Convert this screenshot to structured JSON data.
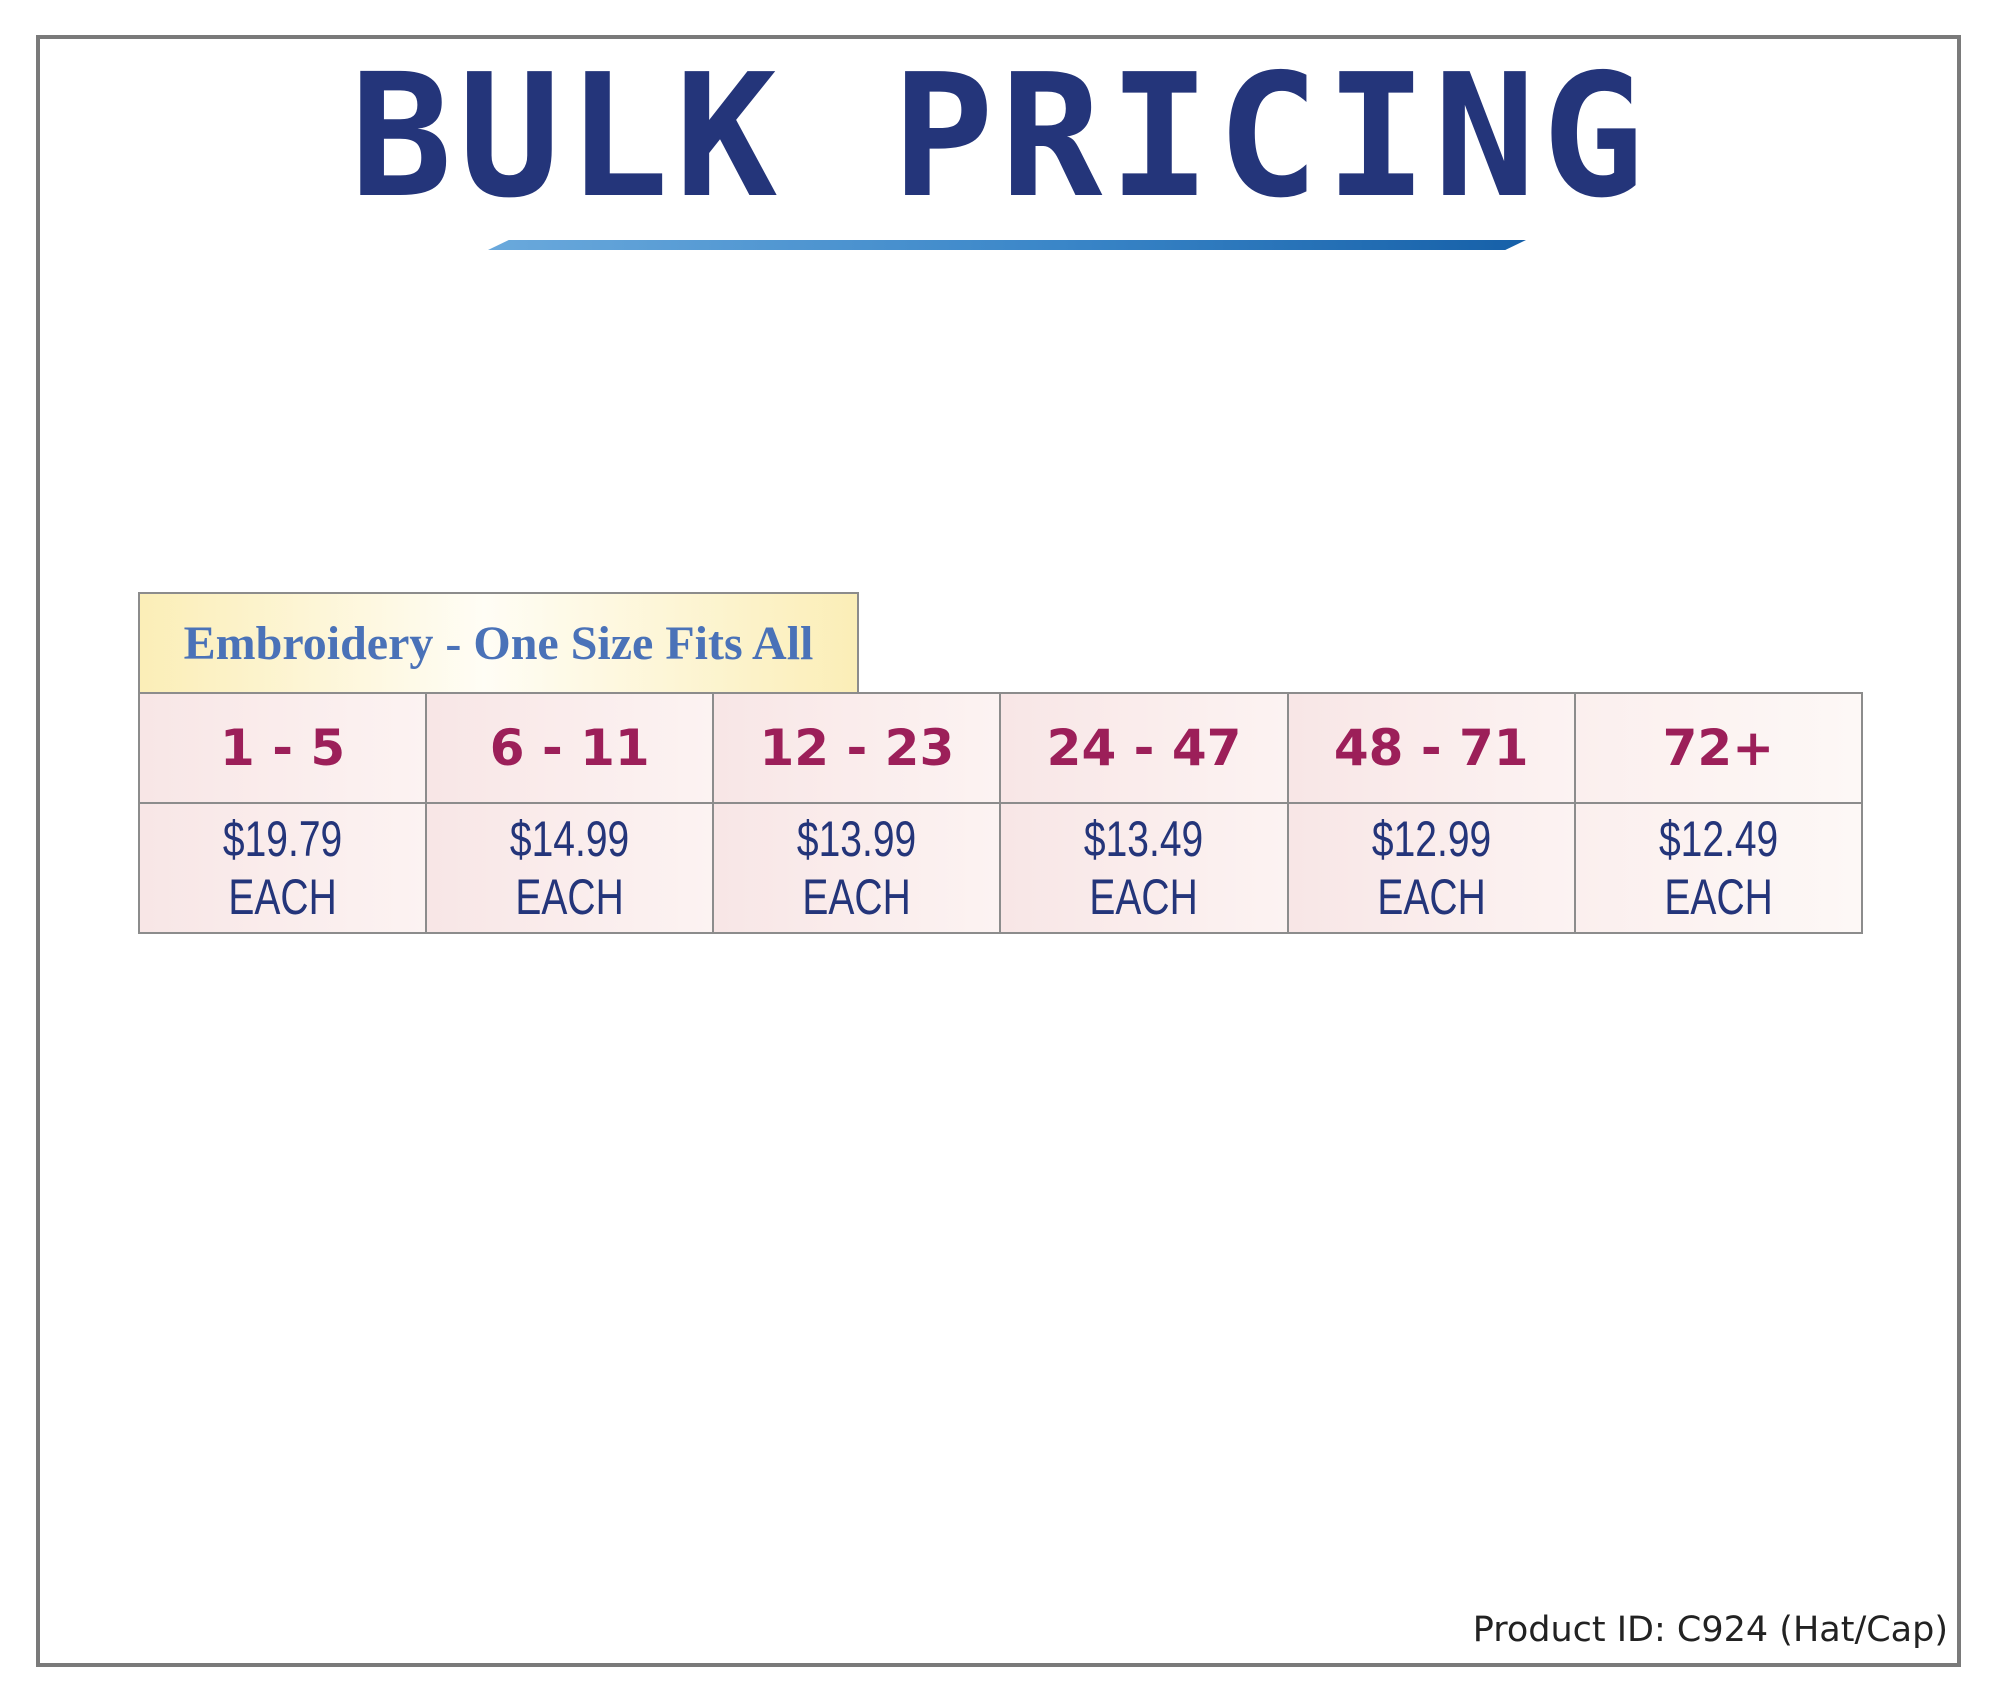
{
  "title": "BULK PRICING",
  "section_label": "Embroidery - One Size Fits All",
  "tiers": [
    {
      "quantity": "1 - 5",
      "price": "$19.79 EACH"
    },
    {
      "quantity": "6 - 11",
      "price": "$14.99 EACH"
    },
    {
      "quantity": "12 - 23",
      "price": "$13.99 EACH"
    },
    {
      "quantity": "24 - 47",
      "price": "$13.49 EACH"
    },
    {
      "quantity": "48 - 71",
      "price": "$12.99 EACH"
    },
    {
      "quantity": "72+",
      "price": "$12.49 EACH"
    }
  ],
  "product_id": "Product ID: C924 (Hat/Cap)",
  "colors": {
    "title": "#24357a",
    "quantity_text": "#9c1f59",
    "price_text": "#24357a",
    "section_label_text": "#4a72b8",
    "section_label_bg": "#fbeeb7",
    "cell_bg": "#f8e6e6",
    "border": "#8c8c8c"
  }
}
